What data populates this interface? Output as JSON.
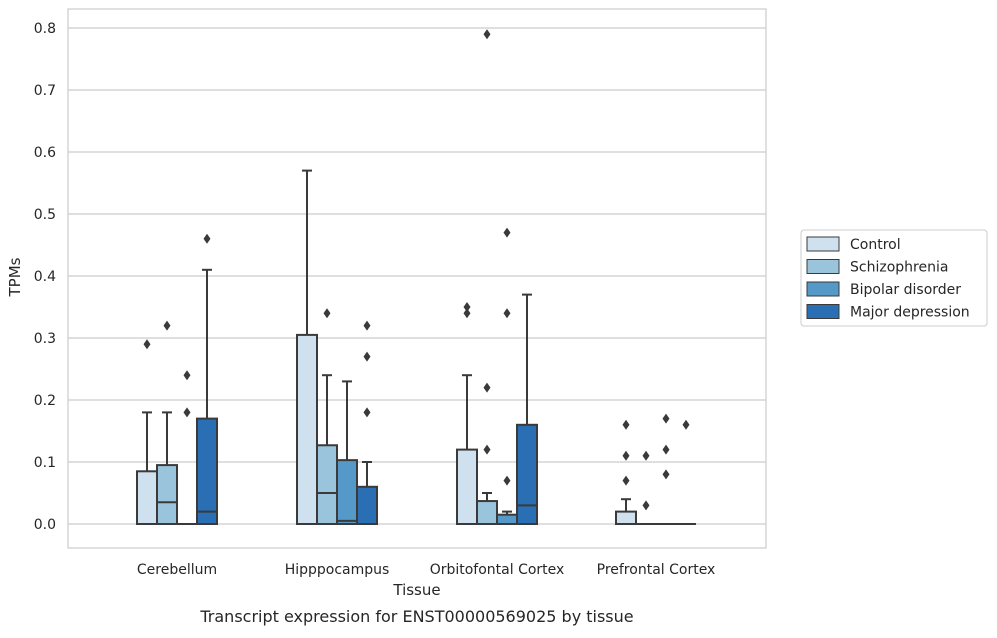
{
  "chart_data": {
    "type": "boxplot",
    "caption": "Transcript expression for ENST00000569025 by tissue",
    "xlabel": "Tissue",
    "ylabel": "TPMs",
    "ylim": [
      -0.04,
      0.83
    ],
    "yticks": [
      0.0,
      0.1,
      0.2,
      0.3,
      0.4,
      0.5,
      0.6,
      0.7,
      0.8
    ],
    "ytick_labels": [
      "0.0",
      "0.1",
      "0.2",
      "0.3",
      "0.4",
      "0.5",
      "0.6",
      "0.7",
      "0.8"
    ],
    "grid": true,
    "legend_position": "right",
    "categories": [
      "Cerebellum",
      "Hipppocampus",
      "Orbitofontal Cortex",
      "Prefrontal Cortex"
    ],
    "series": [
      {
        "name": "Control",
        "color": "#cfe0ef",
        "boxes": [
          {
            "q1": 0.0,
            "median": 0.0,
            "q3": 0.085,
            "whisker_low": 0.0,
            "whisker_high": 0.18,
            "outliers": [
              0.29
            ]
          },
          {
            "q1": 0.0,
            "median": 0.0,
            "q3": 0.305,
            "whisker_low": 0.0,
            "whisker_high": 0.57,
            "outliers": []
          },
          {
            "q1": 0.0,
            "median": 0.0,
            "q3": 0.12,
            "whisker_low": 0.0,
            "whisker_high": 0.24,
            "outliers": [
              0.34,
              0.35
            ]
          },
          {
            "q1": 0.0,
            "median": 0.0,
            "q3": 0.02,
            "whisker_low": 0.0,
            "whisker_high": 0.04,
            "outliers": [
              0.07,
              0.11,
              0.16
            ]
          }
        ]
      },
      {
        "name": "Schizophrenia",
        "color": "#9ac3dc",
        "boxes": [
          {
            "q1": 0.0,
            "median": 0.035,
            "q3": 0.095,
            "whisker_low": 0.0,
            "whisker_high": 0.18,
            "outliers": [
              0.32
            ]
          },
          {
            "q1": 0.0,
            "median": 0.05,
            "q3": 0.127,
            "whisker_low": 0.0,
            "whisker_high": 0.24,
            "outliers": [
              0.34
            ]
          },
          {
            "q1": 0.0,
            "median": 0.0,
            "q3": 0.037,
            "whisker_low": 0.0,
            "whisker_high": 0.05,
            "outliers": [
              0.12,
              0.22,
              0.79
            ]
          },
          {
            "q1": 0.0,
            "median": 0.0,
            "q3": 0.0,
            "whisker_low": 0.0,
            "whisker_high": 0.0,
            "outliers": [
              0.03,
              0.11
            ]
          }
        ]
      },
      {
        "name": "Bipolar disorder",
        "color": "#5599c8",
        "boxes": [
          {
            "q1": 0.0,
            "median": 0.0,
            "q3": 0.0,
            "whisker_low": 0.0,
            "whisker_high": 0.0,
            "outliers": [
              0.18,
              0.24
            ]
          },
          {
            "q1": 0.0,
            "median": 0.005,
            "q3": 0.103,
            "whisker_low": 0.0,
            "whisker_high": 0.23,
            "outliers": []
          },
          {
            "q1": 0.0,
            "median": 0.0,
            "q3": 0.015,
            "whisker_low": 0.0,
            "whisker_high": 0.02,
            "outliers": [
              0.07,
              0.34,
              0.47
            ]
          },
          {
            "q1": 0.0,
            "median": 0.0,
            "q3": 0.0,
            "whisker_low": 0.0,
            "whisker_high": 0.0,
            "outliers": [
              0.08,
              0.12,
              0.17
            ]
          }
        ]
      },
      {
        "name": "Major depression",
        "color": "#2a6eb3",
        "boxes": [
          {
            "q1": 0.0,
            "median": 0.02,
            "q3": 0.17,
            "whisker_low": 0.0,
            "whisker_high": 0.41,
            "outliers": [
              0.46
            ]
          },
          {
            "q1": 0.0,
            "median": 0.0,
            "q3": 0.06,
            "whisker_low": 0.0,
            "whisker_high": 0.1,
            "outliers": [
              0.18,
              0.27,
              0.32
            ]
          },
          {
            "q1": 0.0,
            "median": 0.03,
            "q3": 0.16,
            "whisker_low": 0.0,
            "whisker_high": 0.37,
            "outliers": []
          },
          {
            "q1": 0.0,
            "median": 0.0,
            "q3": 0.0,
            "whisker_low": 0.0,
            "whisker_high": 0.0,
            "outliers": [
              0.16
            ]
          }
        ]
      }
    ]
  }
}
